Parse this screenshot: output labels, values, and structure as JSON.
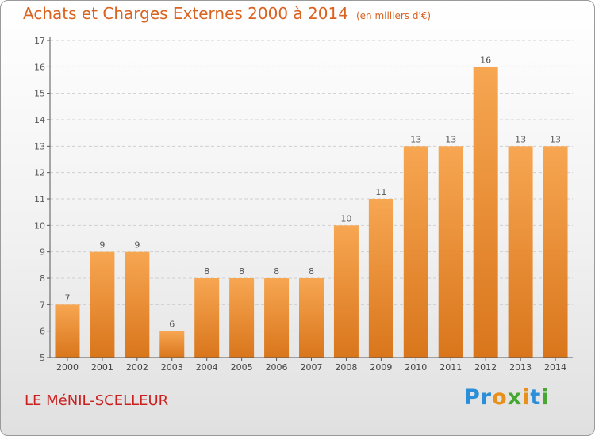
{
  "header": {
    "title": "Achats et Charges Externes 2000 à 2014",
    "unit": "(en milliers d'€)"
  },
  "footer": {
    "place": "LE MéNIL-SCELLEUR",
    "logo_letters": [
      {
        "ch": "P",
        "color": "#2a8fd8"
      },
      {
        "ch": "r",
        "color": "#2a8fd8"
      },
      {
        "ch": "o",
        "color": "#e8901c"
      },
      {
        "ch": "x",
        "color": "#46a832"
      },
      {
        "ch": "i",
        "color": "#e8901c"
      },
      {
        "ch": "t",
        "color": "#2a8fd8"
      },
      {
        "ch": "i",
        "color": "#46a832"
      }
    ]
  },
  "colors": {
    "bar_top": "#f7a652",
    "bar_bottom": "#d9761c",
    "title": "#d9621f",
    "place": "#cc2020",
    "grid": "#cfcfcf"
  },
  "chart_data": {
    "type": "bar",
    "title": "Achats et Charges Externes 2000 à 2014",
    "subtitle": "(en milliers d'€)",
    "xlabel": "",
    "ylabel": "",
    "categories": [
      "2000",
      "2001",
      "2002",
      "2003",
      "2004",
      "2005",
      "2006",
      "2007",
      "2008",
      "2009",
      "2010",
      "2011",
      "2012",
      "2013",
      "2014"
    ],
    "values": [
      7,
      9,
      9,
      6,
      8,
      8,
      8,
      8,
      10,
      11,
      13,
      13,
      16,
      13,
      13
    ],
    "ylim": [
      5,
      17
    ],
    "yticks": [
      5,
      6,
      7,
      8,
      9,
      10,
      11,
      12,
      13,
      14,
      15,
      16,
      17
    ],
    "grid": true,
    "legend": "none"
  }
}
